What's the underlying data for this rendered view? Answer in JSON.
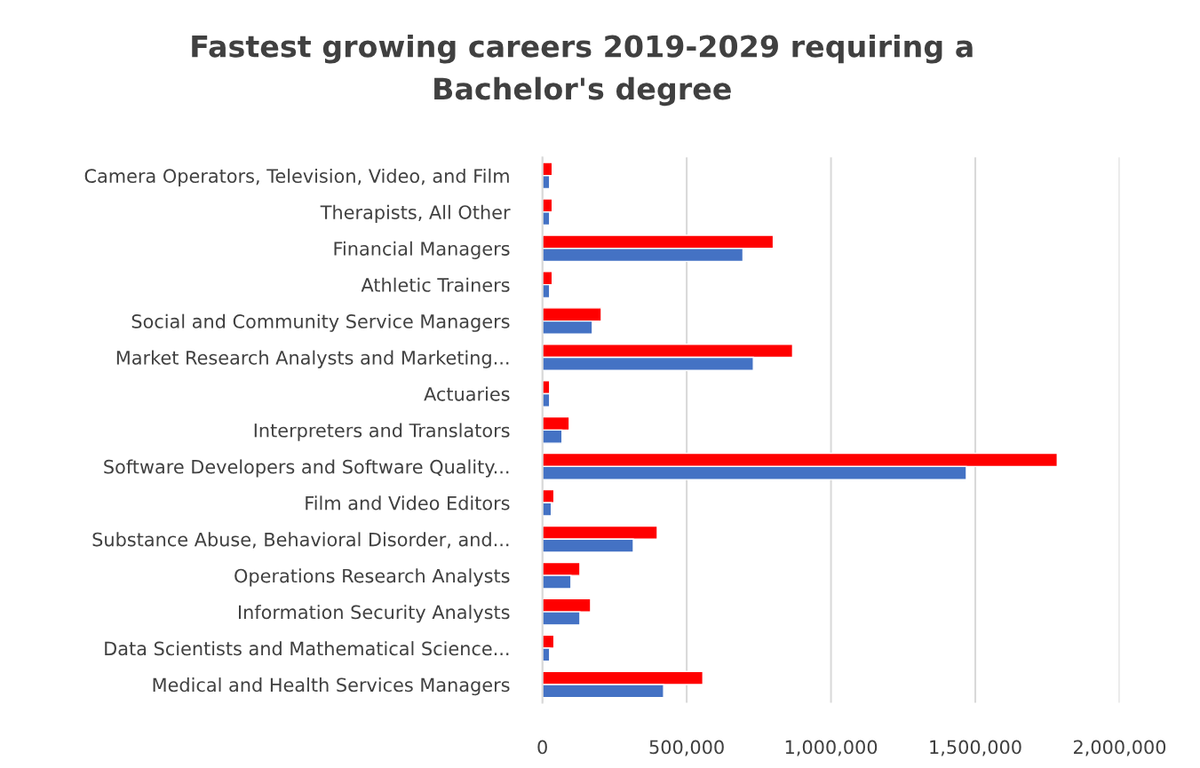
{
  "chart_data": {
    "type": "bar",
    "orientation": "horizontal",
    "title": "Fastest growing careers 2019-2029 requiring a\nBachelor's degree",
    "categories": [
      "Camera Operators, Television, Video, and Film",
      "Therapists, All Other",
      "Financial Managers",
      "Athletic Trainers",
      "Social and Community Service Managers",
      "Market Research Analysts and Marketing...",
      "Actuaries",
      "Interpreters and Translators",
      "Software Developers and Software Quality...",
      "Film and Video Editors",
      "Substance Abuse, Behavioral Disorder, and...",
      "Operations Research Analysts",
      "Information Security Analysts",
      "Data Scientists and Mathematical Science...",
      "Medical and Health Services Managers"
    ],
    "series": [
      {
        "color": "#ff0000",
        "values": [
          34000,
          34000,
          800000,
          34000,
          204000,
          867000,
          25000,
          93000,
          1784000,
          40000,
          398000,
          130000,
          167000,
          40000,
          556000
        ]
      },
      {
        "color": "#4472c4",
        "values": [
          25000,
          25000,
          695000,
          25000,
          173000,
          731000,
          25000,
          68000,
          1469000,
          31000,
          315000,
          99000,
          130000,
          25000,
          420000
        ]
      }
    ],
    "xlim": [
      0,
      2000000
    ],
    "xticks": [
      {
        "value": 0,
        "label": "0"
      },
      {
        "value": 500000,
        "label": "500,000"
      },
      {
        "value": 1000000,
        "label": "1,000,000"
      },
      {
        "value": 1500000,
        "label": "1,500,000"
      },
      {
        "value": 2000000,
        "label": "2,000,000"
      }
    ],
    "grid": "x"
  }
}
